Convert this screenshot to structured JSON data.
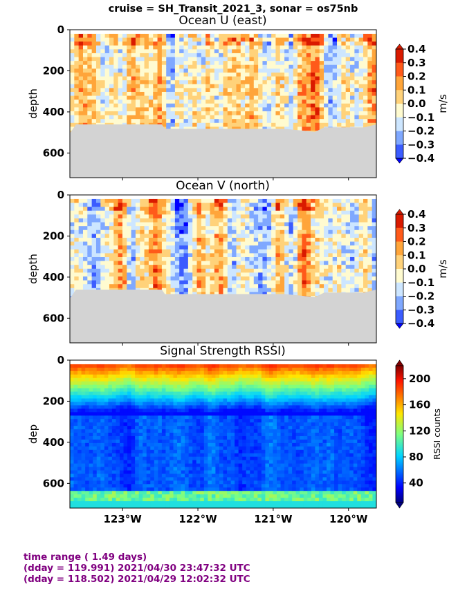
{
  "figure_title": "cruise = SH_Transit_2021_3,  sonar = os75nb",
  "footer": {
    "line1": "time range ( 1.49 days)",
    "line2": "(dday = 119.991) 2021/04/30 23:47:32 UTC",
    "line3": "(dday = 118.502) 2021/04/29 12:02:32 UTC"
  },
  "chart_data": [
    {
      "type": "heatmap",
      "title": "Ocean U (east)",
      "ylabel": "depth",
      "yticks": [
        "0",
        "200",
        "400",
        "600"
      ],
      "ylim": [
        720,
        0
      ],
      "xlim": [
        -123.7,
        -119.63
      ],
      "xticks": [
        -123,
        -122,
        -121,
        -120
      ],
      "colorbar": {
        "label": "m/s",
        "ticks": [
          "0.4",
          "0.3",
          "0.2",
          "0.1",
          "0.0",
          "−0.1",
          "−0.2",
          "−0.3",
          "−0.4"
        ],
        "colors": [
          "#0000ff",
          "#3b5cff",
          "#7fa8ff",
          "#cde6ff",
          "#fffbd0",
          "#ffd27a",
          "#ffa53a",
          "#ff5a1a",
          "#d91a00"
        ]
      },
      "bottom_depth_m": 500
    },
    {
      "type": "heatmap",
      "title": "Ocean V (north)",
      "ylabel": "depth",
      "yticks": [
        "0",
        "200",
        "400",
        "600"
      ],
      "ylim": [
        720,
        0
      ],
      "xlim": [
        -123.7,
        -119.63
      ],
      "xticks": [
        -123,
        -122,
        -121,
        -120
      ],
      "colorbar": {
        "label": "m/s",
        "ticks": [
          "0.4",
          "0.3",
          "0.2",
          "0.1",
          "0.0",
          "−0.1",
          "−0.2",
          "−0.3",
          "−0.4"
        ],
        "colors": [
          "#0000ff",
          "#3b5cff",
          "#7fa8ff",
          "#cde6ff",
          "#fffbd0",
          "#ffd27a",
          "#ffa53a",
          "#ff5a1a",
          "#d91a00"
        ]
      },
      "bottom_depth_m": 500
    },
    {
      "type": "heatmap",
      "title": "Signal Strength RSSI)",
      "ylabel": "dep",
      "yticks": [
        "0",
        "200",
        "400",
        "600"
      ],
      "ylim": [
        720,
        0
      ],
      "xlim": [
        -123.7,
        -119.63
      ],
      "xticks": [
        -123,
        -122,
        -121,
        -120
      ],
      "xticklabels": [
        "123°W",
        "122°W",
        "121°W",
        "120°W"
      ],
      "colorbar": {
        "label": "RSSI counts",
        "ticks": [
          "200",
          "160",
          "120",
          "80",
          "40"
        ],
        "range": [
          10,
          220
        ]
      }
    }
  ]
}
